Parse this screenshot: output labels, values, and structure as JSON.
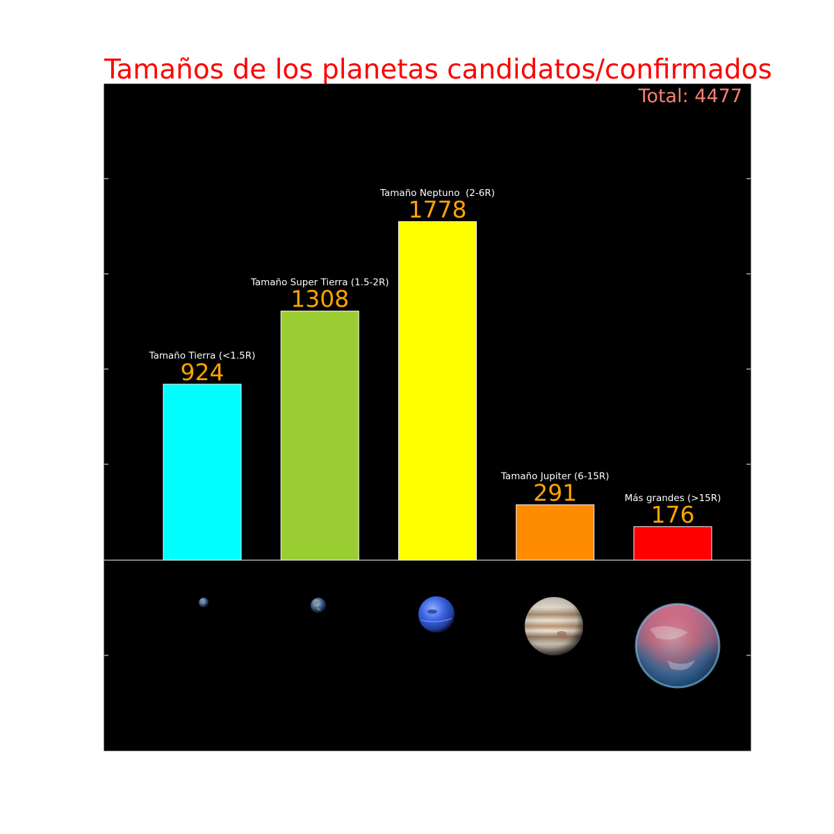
{
  "chart_data": {
    "type": "bar",
    "title": "Tamaños de los planetas candidatos/confirmados",
    "total_label": "Total: 4477",
    "xlabel": "",
    "ylabel": "",
    "ylim": [
      -1000,
      2500
    ],
    "grid": false,
    "background": "#000000",
    "categories": [
      "Tamaño Tierra (<1.5R)",
      "Tamaño Super Tierra (1.5-2R)",
      "Tamaño Neptuno  (2-6R)",
      "Tamaño Jupiter (6-15R)",
      "Más grandes (>15R)"
    ],
    "values": [
      924,
      1308,
      1778,
      291,
      176
    ],
    "value_labels": [
      "924",
      "1308",
      "1778",
      "291",
      "176"
    ],
    "colors": [
      "#00ffff",
      "#9acd32",
      "#ffff00",
      "#ff8c00",
      "#ff0000"
    ],
    "planet_icons": [
      "earth-icon",
      "super-earth-icon",
      "neptune-icon",
      "jupiter-icon",
      "giant-planet-icon"
    ],
    "value_label_color": "#ffa500",
    "category_label_color": "#ffffff",
    "total_label_color": "#fa8072",
    "title_color": "#ff0000"
  }
}
